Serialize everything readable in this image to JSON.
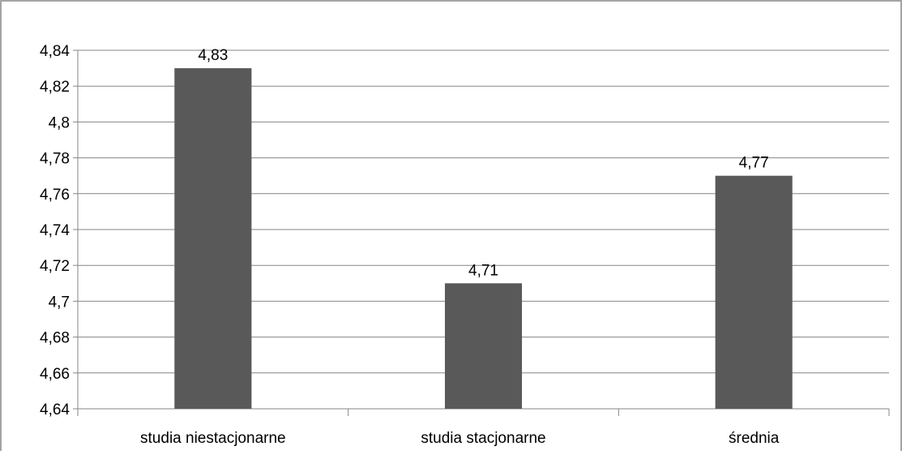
{
  "chart_data": {
    "type": "bar",
    "title": "",
    "xlabel": "",
    "ylabel": "",
    "categories": [
      "studia niestacjonarne",
      "studia stacjonarne",
      "średnia"
    ],
    "values": [
      4.83,
      4.71,
      4.77
    ],
    "data_labels": [
      "4,83",
      "4,71",
      "4,77"
    ],
    "ylim": [
      4.64,
      4.84
    ],
    "y_ticks": [
      4.64,
      4.66,
      4.68,
      4.7,
      4.72,
      4.74,
      4.76,
      4.78,
      4.8,
      4.82,
      4.84
    ],
    "y_tick_labels": [
      "4,64",
      "4,66",
      "4,68",
      "4,7",
      "4,72",
      "4,74",
      "4,76",
      "4,78",
      "4,8",
      "4,82",
      "4,84"
    ],
    "grid": "horizontal",
    "legend": "none",
    "colors": {
      "bar": "#595959",
      "gridline": "#868686",
      "axis": "#868686",
      "frame": "#868686",
      "background": "#ffffff"
    }
  }
}
